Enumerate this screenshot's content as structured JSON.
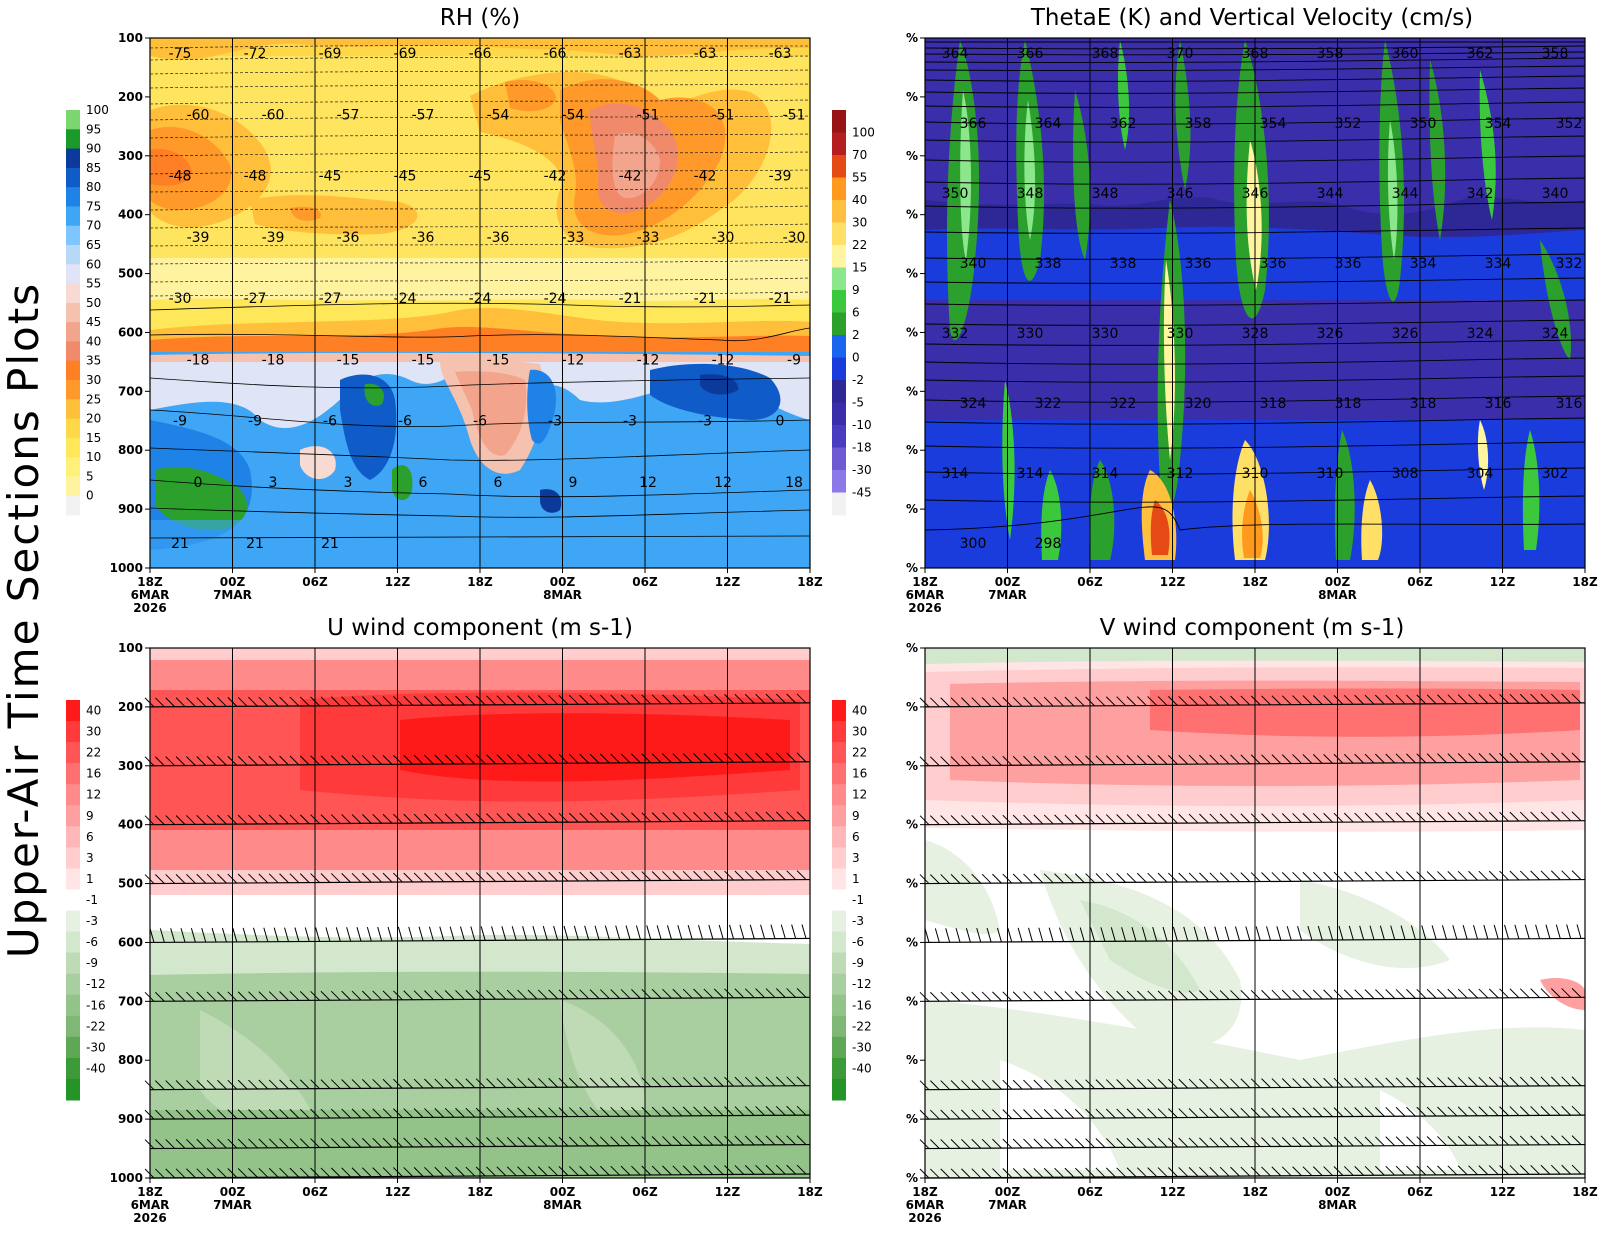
{
  "page": {
    "side_title": "Upper-Air Time Sections Plots"
  },
  "chart_data": [
    {
      "id": "rh",
      "type": "heatmap",
      "title": "RH (%)",
      "xlabel": "",
      "ylabel": "",
      "ylim": [
        1000,
        100
      ],
      "y_tick_labels": [
        "100",
        "200",
        "300",
        "400",
        "500",
        "600",
        "700",
        "800",
        "900",
        "1000"
      ],
      "y_tick_values": [
        100,
        200,
        300,
        400,
        500,
        600,
        700,
        800,
        900,
        1000
      ],
      "x_tick_labels": [
        "18Z",
        "00Z",
        "06Z",
        "12Z",
        "18Z",
        "00Z",
        "06Z",
        "12Z",
        "18Z"
      ],
      "x_date_labels": [
        {
          "label": "6MAR",
          "at": 0
        },
        {
          "label": "2026",
          "at": 0
        },
        {
          "label": "7MAR",
          "at": 1
        },
        {
          "label": "8MAR",
          "at": 5
        }
      ],
      "vertical_gridlines": true,
      "colorbar": {
        "labels": [
          "0",
          "5",
          "10",
          "15",
          "20",
          "25",
          "30",
          "35",
          "40",
          "45",
          "50",
          "55",
          "60",
          "65",
          "70",
          "75",
          "80",
          "85",
          "90",
          "95",
          "100"
        ],
        "colors": [
          "#f2f2f2",
          "#fff3a0",
          "#fff07a",
          "#ffe75a",
          "#ffd84a",
          "#ffbf3a",
          "#ff9a2a",
          "#ff7f25",
          "#f08a6a",
          "#f2a58c",
          "#f6c2b0",
          "#f7dbd2",
          "#dfe5f7",
          "#b8d8f7",
          "#7fc6ff",
          "#3fa6f5",
          "#1e82e6",
          "#0f5cc8",
          "#0b3a9a",
          "#1a9a2a",
          "#7cd66f"
        ]
      },
      "contours": {
        "variable": "temperature (C)",
        "labels": [
          "-75",
          "-72",
          "-69",
          "-69",
          "-66",
          "-66",
          "-63",
          "-63",
          "-63",
          "-60",
          "-60",
          "-57",
          "-57",
          "-54",
          "-54",
          "-51",
          "-51",
          "-51",
          "-48",
          "-48",
          "-45",
          "-45",
          "-45",
          "-42",
          "-42",
          "-42",
          "-39",
          "-39",
          "-39",
          "-36",
          "-36",
          "-36",
          "-33",
          "-33",
          "-30",
          "-30",
          "-30",
          "-27",
          "-27",
          "-24",
          "-24",
          "-24",
          "-21",
          "-21",
          "-21",
          "-18",
          "-18",
          "-15",
          "-15",
          "-15",
          "-12",
          "-12",
          "-12",
          "-9",
          "-9",
          "-9",
          "-6",
          "-6",
          "-6",
          "-3",
          "-3",
          "-3",
          "0",
          "0",
          "3",
          "3",
          "6",
          "6",
          "9",
          "12",
          "12",
          "18",
          "21",
          "21",
          "21"
        ]
      }
    },
    {
      "id": "thetae",
      "type": "heatmap",
      "title": "ThetaE (K) and Vertical Velocity (cm/s)",
      "xlabel": "",
      "ylabel": "",
      "y_tick_labels": [
        "%",
        "%",
        "%",
        "%",
        "%",
        "%",
        "%",
        "%",
        "%",
        "%"
      ],
      "x_tick_labels": [
        "18Z",
        "00Z",
        "06Z",
        "12Z",
        "18Z",
        "00Z",
        "06Z",
        "12Z",
        "18Z"
      ],
      "x_date_labels": [
        {
          "label": "6MAR",
          "at": 0
        },
        {
          "label": "2026",
          "at": 0
        },
        {
          "label": "7MAR",
          "at": 1
        },
        {
          "label": "8MAR",
          "at": 5
        }
      ],
      "vertical_gridlines": true,
      "colorbar": {
        "labels": [
          "-45",
          "-30",
          "-18",
          "-10",
          "-5",
          "-2",
          "0",
          "2",
          "6",
          "9",
          "15",
          "22",
          "30",
          "40",
          "55",
          "70",
          "100"
        ],
        "colors": [
          "#f2f2f2",
          "#8c78e6",
          "#6e5ad2",
          "#4a3cc0",
          "#3b2eaa",
          "#2e2896",
          "#1a3cdc",
          "#1a64f0",
          "#2ca02c",
          "#3cc83c",
          "#8ce68c",
          "#fff5a0",
          "#ffe066",
          "#ffc040",
          "#ff9a1e",
          "#e64a14",
          "#b41e1e",
          "#961414"
        ]
      },
      "contours": {
        "variable": "ThetaE (K)",
        "labels": [
          "364",
          "366",
          "368",
          "370",
          "368",
          "358",
          "360",
          "362",
          "358",
          "366",
          "364",
          "362",
          "358",
          "354",
          "352",
          "350",
          "354",
          "352",
          "350",
          "348",
          "348",
          "346",
          "346",
          "344",
          "344",
          "342",
          "340",
          "340",
          "338",
          "338",
          "336",
          "336",
          "336",
          "334",
          "334",
          "332",
          "332",
          "330",
          "330",
          "330",
          "328",
          "326",
          "326",
          "324",
          "324",
          "324",
          "322",
          "322",
          "320",
          "318",
          "318",
          "318",
          "316",
          "316",
          "314",
          "314",
          "314",
          "312",
          "310",
          "310",
          "308",
          "304",
          "302",
          "300",
          "298"
        ]
      }
    },
    {
      "id": "u",
      "type": "heatmap",
      "title": "U wind component (m s-1)",
      "xlabel": "",
      "ylabel": "",
      "ylim": [
        1000,
        100
      ],
      "y_tick_labels": [
        "100",
        "200",
        "300",
        "400",
        "500",
        "600",
        "700",
        "800",
        "900",
        "1000"
      ],
      "y_tick_values": [
        100,
        200,
        300,
        400,
        500,
        600,
        700,
        800,
        900,
        1000
      ],
      "x_tick_labels": [
        "18Z",
        "00Z",
        "06Z",
        "12Z",
        "18Z",
        "00Z",
        "06Z",
        "12Z",
        "18Z"
      ],
      "x_date_labels": [
        {
          "label": "6MAR",
          "at": 0
        },
        {
          "label": "2026",
          "at": 0
        },
        {
          "label": "7MAR",
          "at": 1
        },
        {
          "label": "8MAR",
          "at": 5
        }
      ],
      "vertical_gridlines": true,
      "wind_barb_levels": [
        200,
        300,
        400,
        500,
        600,
        700,
        850,
        900,
        950,
        1000
      ],
      "colorbar": {
        "labels": [
          "40",
          "30",
          "22",
          "16",
          "12",
          "9",
          "6",
          "3",
          "1",
          "-1",
          "-3",
          "-6",
          "-9",
          "-12",
          "-16",
          "-22",
          "-30",
          "-40"
        ],
        "colors": [
          "#ff1a1a",
          "#ff3a3a",
          "#ff5555",
          "#ff7070",
          "#ff8a8a",
          "#ffa0a0",
          "#ffb8b8",
          "#ffcdcd",
          "#ffe5e5",
          "#ffffff",
          "#e6f1e2",
          "#d2e7cc",
          "#bedbb6",
          "#a9cfa0",
          "#94c38a",
          "#7fb774",
          "#5ea855",
          "#3d9a38",
          "#239425"
        ]
      }
    },
    {
      "id": "v",
      "type": "heatmap",
      "title": "V wind component (m s-1)",
      "xlabel": "",
      "ylabel": "",
      "y_tick_labels": [
        "%",
        "%",
        "%",
        "%",
        "%",
        "%",
        "%",
        "%",
        "%",
        "%"
      ],
      "x_tick_labels": [
        "18Z",
        "00Z",
        "06Z",
        "12Z",
        "18Z",
        "00Z",
        "06Z",
        "12Z",
        "18Z"
      ],
      "x_date_labels": [
        {
          "label": "6MAR",
          "at": 0
        },
        {
          "label": "2026",
          "at": 0
        },
        {
          "label": "7MAR",
          "at": 1
        },
        {
          "label": "8MAR",
          "at": 5
        }
      ],
      "vertical_gridlines": true,
      "wind_barb_levels": [
        200,
        300,
        400,
        500,
        600,
        700,
        850,
        900,
        950,
        1000
      ],
      "colorbar": {
        "labels": [
          "40",
          "30",
          "22",
          "16",
          "12",
          "9",
          "6",
          "3",
          "1",
          "-1",
          "-3",
          "-6",
          "-9",
          "-12",
          "-16",
          "-22",
          "-30",
          "-40"
        ],
        "colors": [
          "#ff1a1a",
          "#ff3a3a",
          "#ff5555",
          "#ff7070",
          "#ff8a8a",
          "#ffa0a0",
          "#ffb8b8",
          "#ffcdcd",
          "#ffe5e5",
          "#ffffff",
          "#e6f1e2",
          "#d2e7cc",
          "#bedbb6",
          "#a9cfa0",
          "#94c38a",
          "#7fb774",
          "#5ea855",
          "#3d9a38",
          "#239425"
        ]
      }
    }
  ]
}
